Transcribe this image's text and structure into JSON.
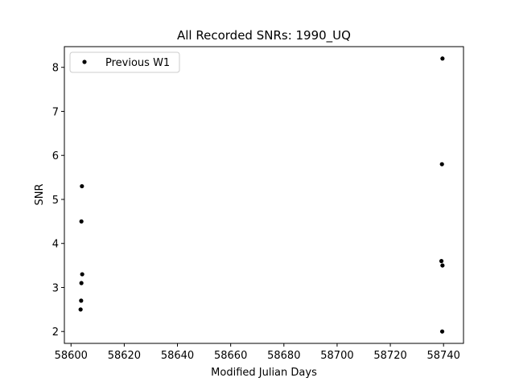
{
  "chart_data": {
    "type": "scatter",
    "title": "All Recorded SNRs: 1990_UQ",
    "xlabel": "Modified Julian Days",
    "ylabel": "SNR",
    "xlim": [
      58597.5,
      58747.5
    ],
    "ylim": [
      1.73,
      8.47
    ],
    "xticks": [
      58600,
      58620,
      58640,
      58660,
      58680,
      58700,
      58720,
      58740
    ],
    "yticks": [
      2,
      3,
      4,
      5,
      6,
      7,
      8
    ],
    "grid": false,
    "legend": {
      "position": "top-left"
    },
    "series": [
      {
        "name": "Previous W1",
        "color": "#000000",
        "marker": "circle",
        "points": [
          {
            "x": 58603.6,
            "y": 2.5
          },
          {
            "x": 58603.8,
            "y": 2.7
          },
          {
            "x": 58603.9,
            "y": 3.1
          },
          {
            "x": 58604.2,
            "y": 3.3
          },
          {
            "x": 58603.9,
            "y": 4.5
          },
          {
            "x": 58604.1,
            "y": 5.3
          },
          {
            "x": 58739.2,
            "y": 3.6
          },
          {
            "x": 58739.6,
            "y": 3.5
          },
          {
            "x": 58739.5,
            "y": 2.0
          },
          {
            "x": 58739.4,
            "y": 5.8
          },
          {
            "x": 58739.6,
            "y": 8.2
          }
        ]
      }
    ]
  }
}
